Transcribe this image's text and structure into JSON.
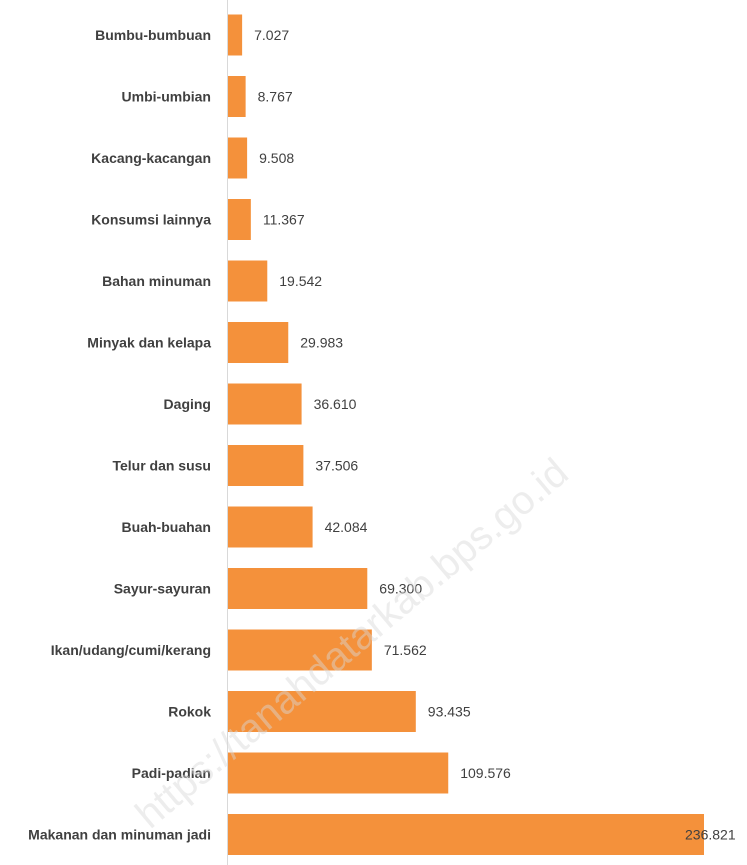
{
  "watermark": "https://tanahdatarkab.bps.go.id",
  "colors": {
    "bar": "#F4913B",
    "axis": "#D9D9D9",
    "text": "#404040"
  },
  "chart_data": {
    "type": "bar",
    "orientation": "horizontal",
    "title": "",
    "xlabel": "",
    "ylabel": "",
    "grid": false,
    "legend": "none",
    "xlim": [
      0,
      236.821
    ],
    "categories": [
      "Bumbu-bumbuan",
      "Umbi-umbian",
      "Kacang-kacangan",
      "Konsumsi lainnya",
      "Bahan minuman",
      "Minyak dan kelapa",
      "Daging",
      "Telur dan susu",
      "Buah-buahan",
      "Sayur-sayuran",
      "Ikan/udang/cumi/kerang",
      "Rokok",
      "Padi-padian",
      "Makanan dan minuman jadi"
    ],
    "values": [
      7.027,
      8.767,
      9.508,
      11.367,
      19.542,
      29.983,
      36.61,
      37.506,
      42.084,
      69.3,
      71.562,
      93.435,
      109.576,
      236.821
    ],
    "value_labels": [
      "7.027",
      "8.767",
      "9.508",
      "11.367",
      "19.542",
      "29.983",
      "36.610",
      "37.506",
      "42.084",
      "69.300",
      "71.562",
      "93.435",
      "109.576",
      "236.821"
    ]
  }
}
